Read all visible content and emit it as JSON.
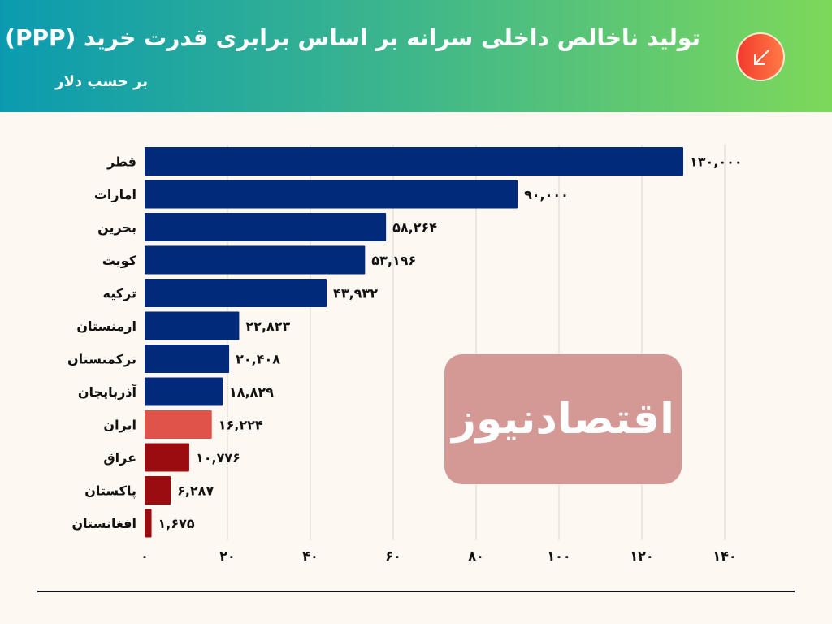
{
  "header": {
    "title": "تولید ناخالص داخلی سرانه بر اساس برابری قدرت خرید (PPP)",
    "subtitle": "بر حسب دلار",
    "icon": "arrow-down-left-icon"
  },
  "watermark": "اقتصادنیوز",
  "colors": {
    "gulf": "#022a7a",
    "iran": "#e0534a",
    "neighbors": "#9b0c10"
  },
  "chart_data": {
    "type": "bar",
    "orientation": "horizontal",
    "title": "تولید ناخالص داخلی سرانه بر اساس برابری قدرت خرید (PPP)",
    "subtitle": "بر حسب دلار",
    "xlabel": "",
    "ylabel": "",
    "xlim": [
      0,
      140
    ],
    "unit_scale": "thousands",
    "grid": true,
    "xticks": [
      0,
      20,
      40,
      60,
      80,
      100,
      120,
      140
    ],
    "xtick_labels": [
      "۰",
      "۲۰",
      "۴۰",
      "۶۰",
      "۸۰",
      "۱۰۰",
      "۱۲۰",
      "۱۴۰"
    ],
    "categories": [
      "قطر",
      "امارات",
      "بحرین",
      "کویت",
      "ترکیه",
      "ارمنستان",
      "ترکمنستان",
      "آذربایجان",
      "ایران",
      "عراق",
      "پاکستان",
      "افغانستان"
    ],
    "values": [
      130000,
      90000,
      58264,
      53196,
      43932,
      22823,
      20408,
      18829,
      16224,
      10776,
      6287,
      1675
    ],
    "value_labels": [
      "۱۳۰,۰۰۰",
      "۹۰,۰۰۰",
      "۵۸,۲۶۴",
      "۵۳,۱۹۶",
      "۴۳,۹۳۲",
      "۲۲,۸۲۳",
      "۲۰,۴۰۸",
      "۱۸,۸۲۹",
      "۱۶,۲۲۴",
      "۱۰,۷۷۶",
      "۶,۲۸۷",
      "۱,۶۷۵"
    ],
    "bar_colors": [
      "#022a7a",
      "#022a7a",
      "#022a7a",
      "#022a7a",
      "#022a7a",
      "#022a7a",
      "#022a7a",
      "#022a7a",
      "#e0534a",
      "#9b0c10",
      "#9b0c10",
      "#9b0c10"
    ]
  }
}
